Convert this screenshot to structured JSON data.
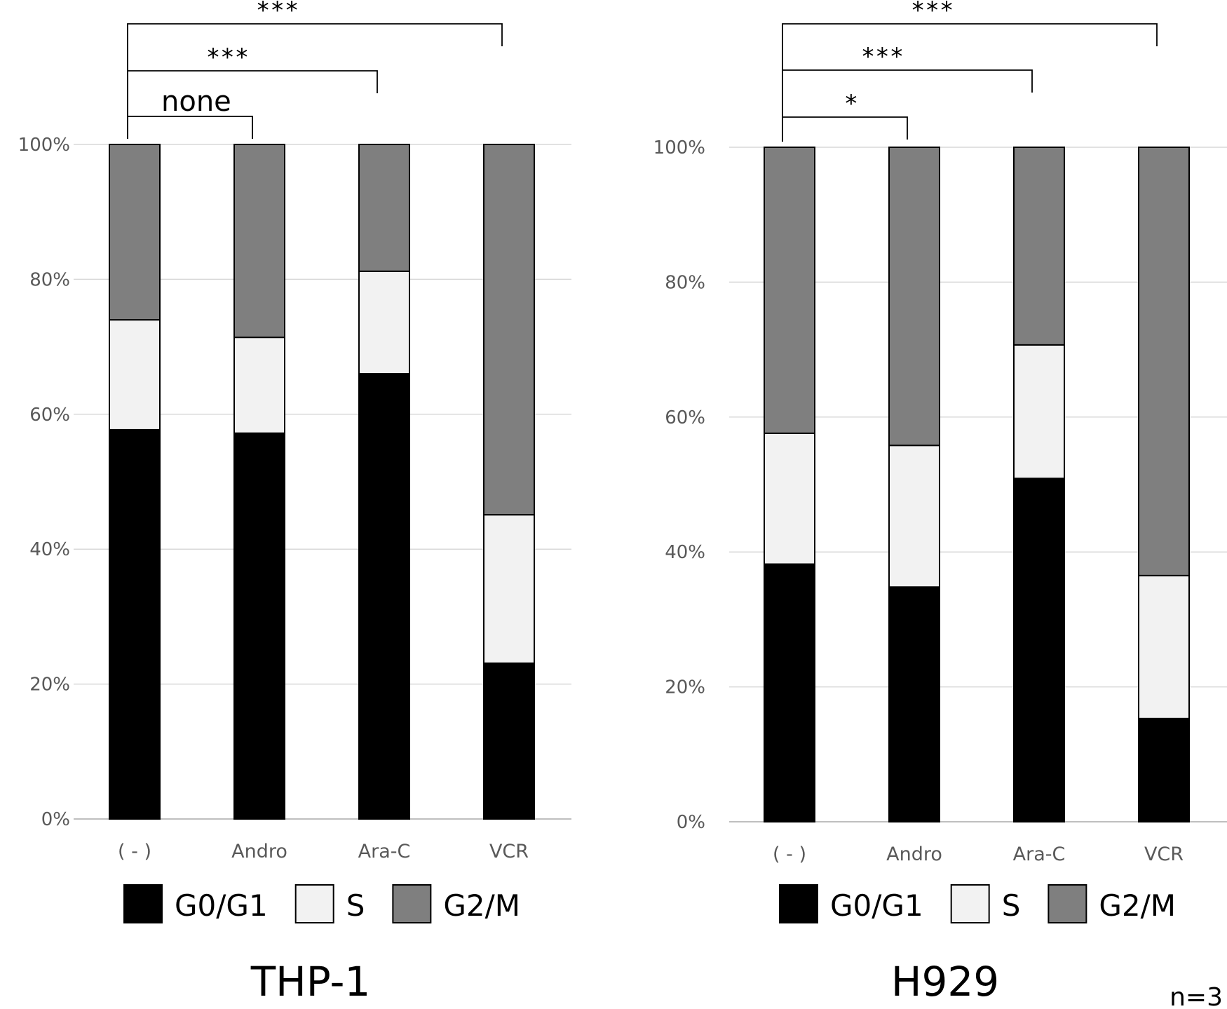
{
  "note": "n=3",
  "chart_data": [
    {
      "type": "bar",
      "stacked": true,
      "title": "THP-1",
      "categories": [
        "( - )",
        "Andro",
        "Ara-C",
        "VCR"
      ],
      "series": [
        {
          "name": "G0/G1",
          "color": "#000000",
          "values": [
            57.7,
            57.2,
            66.0,
            23.1
          ]
        },
        {
          "name": "S",
          "color": "#f2f2f2",
          "values": [
            16.3,
            14.2,
            15.2,
            22.0
          ]
        },
        {
          "name": "G2/M",
          "color": "#7f7f7f",
          "values": [
            26.0,
            28.6,
            18.8,
            54.9
          ]
        }
      ],
      "ylim": [
        0,
        100
      ],
      "yticks": [
        "0%",
        "20%",
        "40%",
        "60%",
        "80%",
        "100%"
      ],
      "legend_position": "bottom",
      "significance": [
        {
          "from": "( - )",
          "to": "Andro",
          "label": "none"
        },
        {
          "from": "( - )",
          "to": "Ara-C",
          "label": "***"
        },
        {
          "from": "( - )",
          "to": "VCR",
          "label": "***"
        }
      ]
    },
    {
      "type": "bar",
      "stacked": true,
      "title": "H929",
      "categories": [
        "( - )",
        "Andro",
        "Ara-C",
        "VCR"
      ],
      "series": [
        {
          "name": "G0/G1",
          "color": "#000000",
          "values": [
            38.2,
            34.8,
            50.9,
            15.3
          ]
        },
        {
          "name": "S",
          "color": "#f2f2f2",
          "values": [
            19.4,
            21.0,
            19.8,
            21.2
          ]
        },
        {
          "name": "G2/M",
          "color": "#7f7f7f",
          "values": [
            42.4,
            44.2,
            29.3,
            63.5
          ]
        }
      ],
      "ylim": [
        0,
        100
      ],
      "yticks": [
        "0%",
        "20%",
        "40%",
        "60%",
        "80%",
        "100%"
      ],
      "legend_position": "bottom",
      "significance": [
        {
          "from": "( - )",
          "to": "Andro",
          "label": "*"
        },
        {
          "from": "( - )",
          "to": "Ara-C",
          "label": "***"
        },
        {
          "from": "( - )",
          "to": "VCR",
          "label": "***"
        }
      ]
    }
  ]
}
